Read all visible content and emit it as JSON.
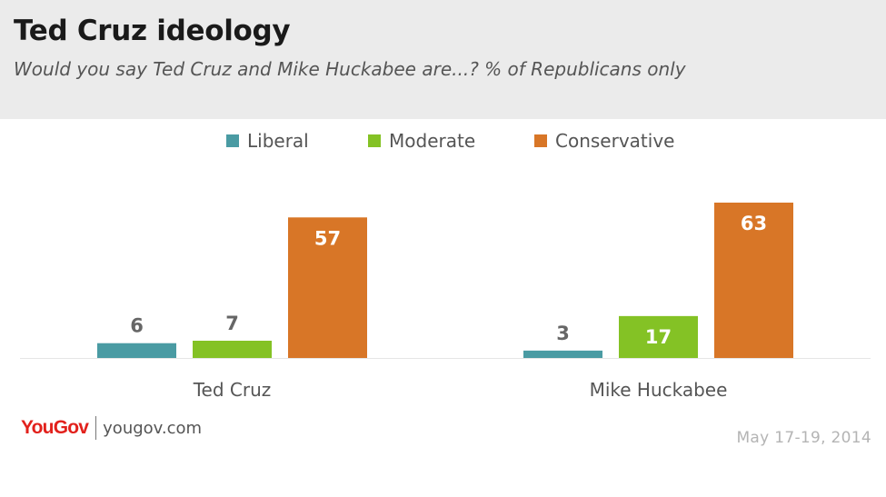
{
  "header": {
    "title": "Ted Cruz ideology",
    "subtitle": "Would you say Ted Cruz and Mike Huckabee are...? % of Republicans only"
  },
  "legend": [
    {
      "label": "Liberal",
      "color": "#4a9ba3"
    },
    {
      "label": "Moderate",
      "color": "#84c225"
    },
    {
      "label": "Conservative",
      "color": "#d87627"
    }
  ],
  "chart_data": {
    "type": "bar",
    "title": "Ted Cruz ideology",
    "subtitle": "Would you say Ted Cruz and Mike Huckabee are...? % of Republicans only",
    "categories": [
      "Ted Cruz",
      "Mike Huckabee"
    ],
    "series": [
      {
        "name": "Liberal",
        "values": [
          6,
          3
        ],
        "color": "#4a9ba3"
      },
      {
        "name": "Moderate",
        "values": [
          7,
          17
        ],
        "color": "#84c225"
      },
      {
        "name": "Conservative",
        "values": [
          57,
          63
        ],
        "color": "#d87627"
      }
    ],
    "ylim": [
      0,
      63
    ],
    "grid": false,
    "legend_position": "top-center",
    "xlabel": "",
    "ylabel": ""
  },
  "footer": {
    "brand": "YouGov",
    "url": "yougov.com",
    "date": "May 17-19, 2014"
  }
}
